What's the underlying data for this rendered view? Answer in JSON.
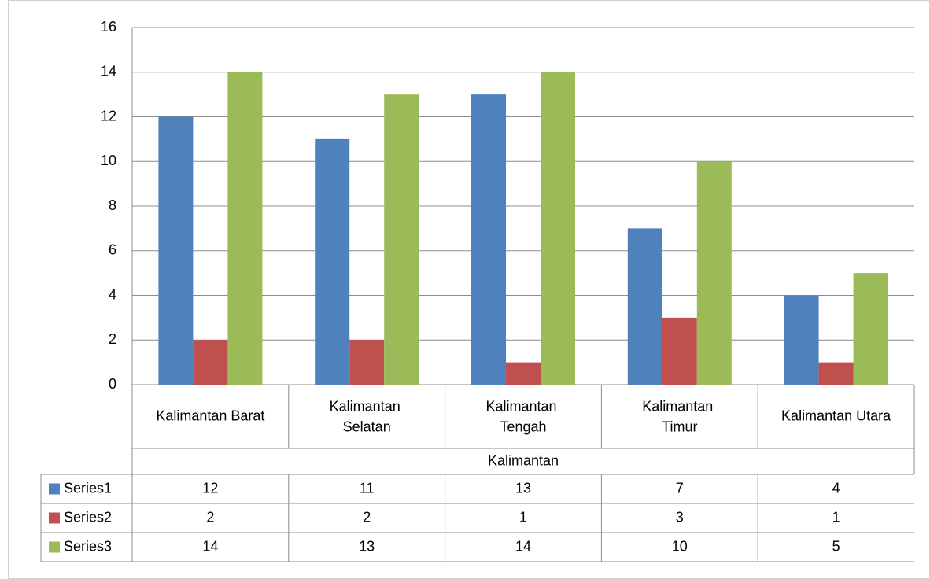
{
  "chart_data": {
    "type": "bar",
    "categories": [
      "Kalimantan Barat",
      "Kalimantan Selatan",
      "Kalimantan Tengah",
      "Kalimantan Timur",
      "Kalimantan Utara"
    ],
    "xlabel": "Kalimantan",
    "series": [
      {
        "name": "Series1",
        "color": "#4f81bd",
        "values": [
          12,
          11,
          13,
          7,
          4
        ]
      },
      {
        "name": "Series2",
        "color": "#c0504d",
        "values": [
          2,
          2,
          1,
          3,
          1
        ]
      },
      {
        "name": "Series3",
        "color": "#9bbb59",
        "values": [
          14,
          13,
          14,
          10,
          5
        ]
      }
    ],
    "ylim": [
      0,
      16
    ],
    "yticks": [
      0,
      2,
      4,
      6,
      8,
      10,
      12,
      14,
      16
    ],
    "grid": true,
    "data_table": true
  }
}
